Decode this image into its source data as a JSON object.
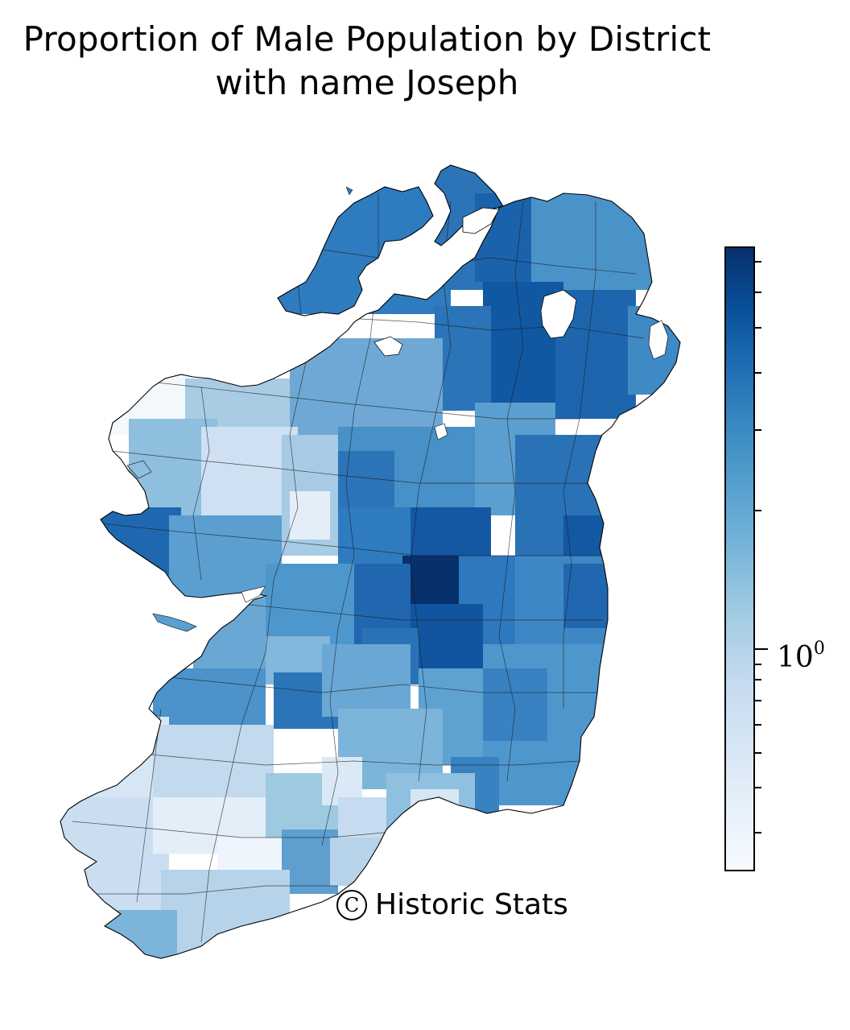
{
  "title_line1": "Proportion of Male Population by District",
  "title_line2": "with name Joseph",
  "colorbar": {
    "scale": "log",
    "tick_base": "10",
    "tick_exp": "0",
    "colormap": "Blues",
    "color_low": "#f7fbff",
    "color_high": "#08306b"
  },
  "watermark": {
    "symbol": "C",
    "text": "Historic Stats"
  },
  "chart_data": {
    "type": "heatmap",
    "title": "Proportion of Male Population by District with name Joseph",
    "colorbar_scale": "log",
    "colorbar_ticks": [
      "10^0"
    ],
    "note": "Choropleth of Irish districts; darkest district in the midlands, lightest in the far south-west and far north-west."
  }
}
